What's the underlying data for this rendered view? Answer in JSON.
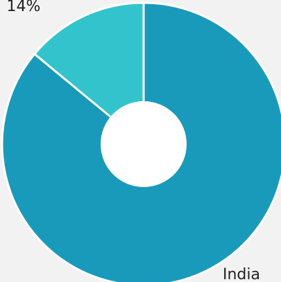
{
  "chart_data": {
    "type": "pie",
    "donut": true,
    "categories": [
      "India",
      null
    ],
    "values": [
      86,
      14
    ],
    "value_labels": [
      null,
      "14%"
    ],
    "colors": [
      "#1a9aba",
      "#33c3cc"
    ]
  }
}
